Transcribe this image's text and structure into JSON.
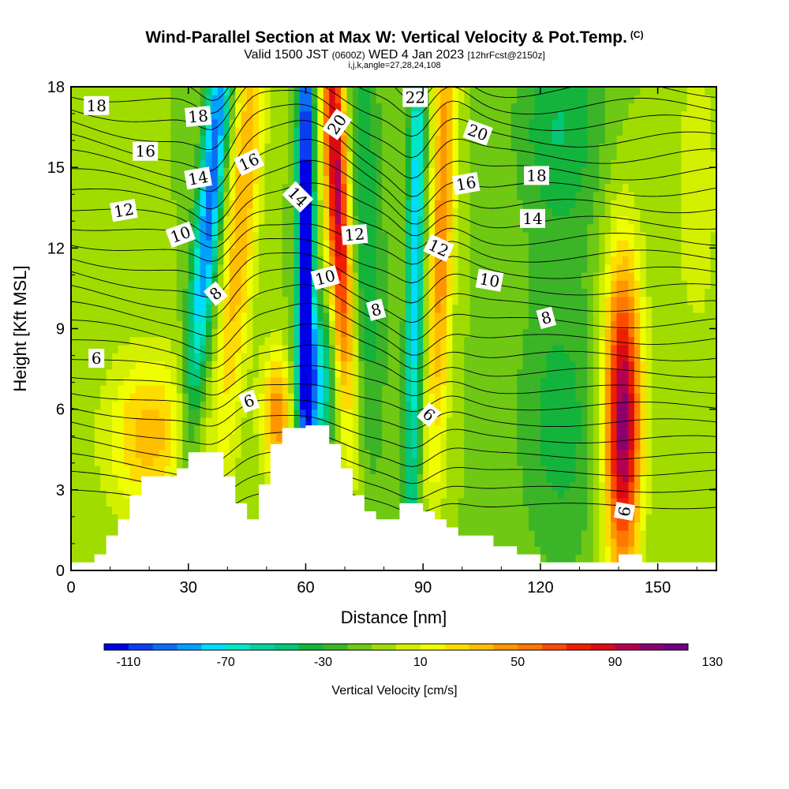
{
  "header": {
    "title": "Wind-Parallel Section at Max W: Vertical Velocity & Pot.Temp.",
    "title_tag": "(C)",
    "subtitle_a": "Valid 1500 JST",
    "subtitle_b": "(0600Z)",
    "subtitle_c": "WED 4 Jan 2023",
    "subtitle_d": "[12hrFcst@2150z]",
    "params": "i,j,k,angle=27,28,24,108"
  },
  "chart_data": {
    "type": "heatmap",
    "title": "Wind-Parallel Section at Max W: Vertical Velocity & Pot.Temp.",
    "xlabel": "Distance [nm]",
    "ylabel": "Height [Kft MSL]",
    "xlim": [
      0,
      165
    ],
    "ylim": [
      0,
      18
    ],
    "x_ticks": [
      0,
      30,
      60,
      90,
      120,
      150
    ],
    "y_ticks": [
      0,
      3,
      6,
      9,
      12,
      15,
      18
    ],
    "grid": false,
    "colorbar": {
      "label": "Vertical Velocity [cm/s]",
      "min": -120,
      "step": 10,
      "tick_values": [
        -110,
        -70,
        -30,
        10,
        50,
        90,
        130
      ],
      "colors": [
        "#0000e6",
        "#0a3cf0",
        "#0a6ef5",
        "#00a0ff",
        "#00dcff",
        "#00e6c8",
        "#00d2a0",
        "#00c878",
        "#14b43c",
        "#3cb428",
        "#6ec814",
        "#a0dc00",
        "#d2f000",
        "#f0ff00",
        "#ffdc00",
        "#ffbe00",
        "#ff9600",
        "#ff7800",
        "#ff4b00",
        "#f01e00",
        "#dc0a14",
        "#b40050",
        "#8c006e",
        "#6e0082"
      ]
    },
    "terrain": [
      [
        0,
        0.3
      ],
      [
        6,
        0.3
      ],
      [
        6,
        0.6
      ],
      [
        9,
        0.6
      ],
      [
        9,
        1.3
      ],
      [
        12,
        1.3
      ],
      [
        12,
        1.9
      ],
      [
        15,
        1.9
      ],
      [
        15,
        2.8
      ],
      [
        18,
        2.8
      ],
      [
        18,
        3.5
      ],
      [
        27,
        3.5
      ],
      [
        27,
        3.8
      ],
      [
        30,
        3.8
      ],
      [
        30,
        4.4
      ],
      [
        39,
        4.4
      ],
      [
        39,
        3.5
      ],
      [
        42,
        3.5
      ],
      [
        42,
        2.5
      ],
      [
        45,
        2.5
      ],
      [
        45,
        1.9
      ],
      [
        48,
        1.9
      ],
      [
        48,
        3.2
      ],
      [
        51,
        3.2
      ],
      [
        51,
        4.7
      ],
      [
        54,
        4.7
      ],
      [
        54,
        5.3
      ],
      [
        60,
        5.3
      ],
      [
        60,
        5.4
      ],
      [
        66,
        5.4
      ],
      [
        66,
        4.7
      ],
      [
        69,
        4.7
      ],
      [
        69,
        3.8
      ],
      [
        72,
        3.8
      ],
      [
        72,
        2.8
      ],
      [
        75,
        2.8
      ],
      [
        75,
        2.2
      ],
      [
        78,
        2.2
      ],
      [
        78,
        1.9
      ],
      [
        84,
        1.9
      ],
      [
        84,
        2.5
      ],
      [
        90,
        2.5
      ],
      [
        90,
        2.2
      ],
      [
        93,
        2.2
      ],
      [
        93,
        1.9
      ],
      [
        96,
        1.9
      ],
      [
        96,
        1.6
      ],
      [
        99,
        1.6
      ],
      [
        99,
        1.3
      ],
      [
        102,
        1.3
      ],
      [
        102,
        1.3
      ],
      [
        108,
        1.3
      ],
      [
        108,
        0.9
      ],
      [
        114,
        0.9
      ],
      [
        114,
        0.6
      ],
      [
        120,
        0.6
      ],
      [
        120,
        0.3
      ],
      [
        140,
        0.3
      ],
      [
        140,
        0.6
      ],
      [
        146,
        0.6
      ],
      [
        146,
        0.3
      ],
      [
        165,
        0.3
      ]
    ],
    "w_field": {
      "background": -10,
      "features": [
        {
          "x": 36,
          "y": 14.5,
          "sx": 2.2,
          "sy": 6.5,
          "w": -90,
          "tilt": 0.6
        },
        {
          "x": 44,
          "y": 14.0,
          "sx": 3.0,
          "sy": 7.0,
          "w": 50,
          "tilt": 0.5
        },
        {
          "x": 60,
          "y": 13.5,
          "sx": 1.4,
          "sy": 7.0,
          "w": -120,
          "tilt": 0.0
        },
        {
          "x": 68,
          "y": 14.5,
          "sx": 2.2,
          "sy": 6.0,
          "w": 110,
          "tilt": -0.3
        },
        {
          "x": 62,
          "y": 7.0,
          "sx": 3.5,
          "sy": 2.0,
          "w": -70,
          "tilt": 0.0
        },
        {
          "x": 53,
          "y": 5.8,
          "sx": 3.0,
          "sy": 1.8,
          "w": 60,
          "tilt": 0.0
        },
        {
          "x": 75,
          "y": 13.0,
          "sx": 3.5,
          "sy": 6.5,
          "w": -30,
          "tilt": -0.2
        },
        {
          "x": 88,
          "y": 12.0,
          "sx": 1.5,
          "sy": 8.0,
          "w": -70,
          "tilt": 0.1
        },
        {
          "x": 95,
          "y": 13.5,
          "sx": 2.2,
          "sy": 7.0,
          "w": 60,
          "tilt": 0.2
        },
        {
          "x": 20,
          "y": 5.0,
          "sx": 8.0,
          "sy": 2.2,
          "w": 45,
          "tilt": 0.0
        },
        {
          "x": 141,
          "y": 5.0,
          "sx": 3.2,
          "sy": 4.0,
          "w": 100,
          "tilt": 0.0
        },
        {
          "x": 141,
          "y": 8.0,
          "sx": 4.0,
          "sy": 4.0,
          "w": 25,
          "tilt": 0.0
        },
        {
          "x": 125,
          "y": 5.5,
          "sx": 8.0,
          "sy": 4.0,
          "w": -25,
          "tilt": 0.0
        },
        {
          "x": 160,
          "y": 14.0,
          "sx": 5.0,
          "sy": 5.0,
          "w": 15,
          "tilt": 0.0
        },
        {
          "x": 125,
          "y": 16.5,
          "sx": 8.0,
          "sy": 3.0,
          "w": -30,
          "tilt": 0.0
        }
      ]
    },
    "theta_contour_labels": [
      {
        "text": "18",
        "x": 6.5,
        "y": 17.3,
        "rot": 0
      },
      {
        "text": "16",
        "x": 19,
        "y": 15.6,
        "rot": 0
      },
      {
        "text": "12",
        "x": 13.5,
        "y": 13.4,
        "rot": -10
      },
      {
        "text": "10",
        "x": 28,
        "y": 12.5,
        "rot": -20
      },
      {
        "text": "6",
        "x": 6.5,
        "y": 7.9,
        "rot": 0
      },
      {
        "text": "18",
        "x": 32.5,
        "y": 16.9,
        "rot": -5
      },
      {
        "text": "14",
        "x": 32.5,
        "y": 14.6,
        "rot": -10
      },
      {
        "text": "8",
        "x": 37,
        "y": 10.3,
        "rot": -40
      },
      {
        "text": "16",
        "x": 45.5,
        "y": 15.2,
        "rot": -25
      },
      {
        "text": "6",
        "x": 45.5,
        "y": 6.3,
        "rot": -20
      },
      {
        "text": "14",
        "x": 58,
        "y": 13.9,
        "rot": 45
      },
      {
        "text": "20",
        "x": 68,
        "y": 16.6,
        "rot": -55
      },
      {
        "text": "12",
        "x": 72.5,
        "y": 12.5,
        "rot": -5
      },
      {
        "text": "10",
        "x": 65,
        "y": 10.9,
        "rot": -15
      },
      {
        "text": "8",
        "x": 78,
        "y": 9.7,
        "rot": -15
      },
      {
        "text": "22",
        "x": 88,
        "y": 17.6,
        "rot": 0
      },
      {
        "text": "6",
        "x": 91.5,
        "y": 5.8,
        "rot": 40
      },
      {
        "text": "20",
        "x": 104,
        "y": 16.3,
        "rot": 20
      },
      {
        "text": "16",
        "x": 101,
        "y": 14.4,
        "rot": -10
      },
      {
        "text": "12",
        "x": 94,
        "y": 12.0,
        "rot": 25
      },
      {
        "text": "10",
        "x": 107,
        "y": 10.8,
        "rot": 10
      },
      {
        "text": "14",
        "x": 118,
        "y": 13.1,
        "rot": 0
      },
      {
        "text": "18",
        "x": 119,
        "y": 14.7,
        "rot": 0
      },
      {
        "text": "8",
        "x": 121.5,
        "y": 9.4,
        "rot": -15
      },
      {
        "text": "6",
        "x": 141.5,
        "y": 2.2,
        "rot": -80
      }
    ]
  }
}
